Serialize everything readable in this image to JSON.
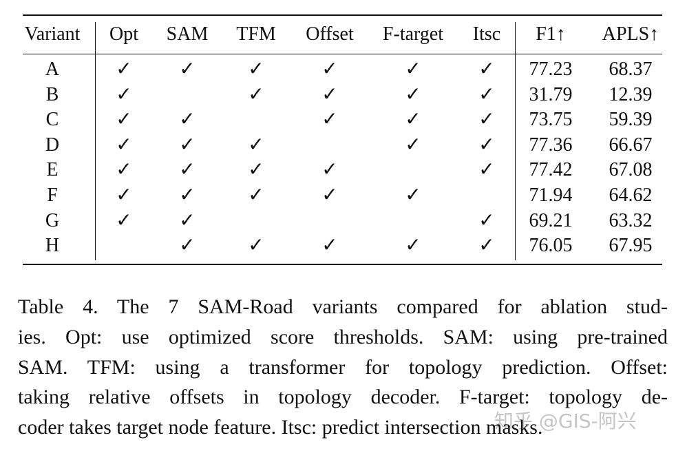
{
  "table": {
    "header": [
      "Variant",
      "Opt",
      "SAM",
      "TFM",
      "Offset",
      "F-target",
      "Itsc",
      "F1↑",
      "APLS↑"
    ],
    "rows": [
      [
        "A",
        "✓",
        "✓",
        "✓",
        "✓",
        "✓",
        "✓",
        "77.23",
        "68.37"
      ],
      [
        "B",
        "✓",
        null,
        "✓",
        "✓",
        "✓",
        "✓",
        "31.79",
        "12.39"
      ],
      [
        "C",
        "✓",
        "✓",
        null,
        "✓",
        "✓",
        "✓",
        "73.75",
        "59.39"
      ],
      [
        "D",
        "✓",
        "✓",
        "✓",
        null,
        "✓",
        "✓",
        "77.36",
        "66.67"
      ],
      [
        "E",
        "✓",
        "✓",
        "✓",
        "✓",
        null,
        "✓",
        "77.42",
        "67.08"
      ],
      [
        "F",
        "✓",
        "✓",
        "✓",
        "✓",
        "✓",
        null,
        "71.94",
        "64.62"
      ],
      [
        "G",
        "✓",
        "✓",
        null,
        null,
        null,
        "✓",
        "69.21",
        "63.32"
      ],
      [
        "H",
        null,
        "✓",
        "✓",
        "✓",
        "✓",
        "✓",
        "76.05",
        "67.95"
      ]
    ]
  },
  "caption": {
    "lines": [
      "Table 4.  The 7 SAM-Road variants compared for ablation stud-",
      "ies. Opt: use optimized score thresholds. SAM: using pre-trained",
      "SAM. TFM: using a transformer for topology prediction. Offset:",
      "taking relative offsets in topology decoder. F-target: topology de-",
      "coder takes target node feature. Itsc: predict intersection masks."
    ]
  },
  "watermark": "知乎 @GIS-阿兴"
}
